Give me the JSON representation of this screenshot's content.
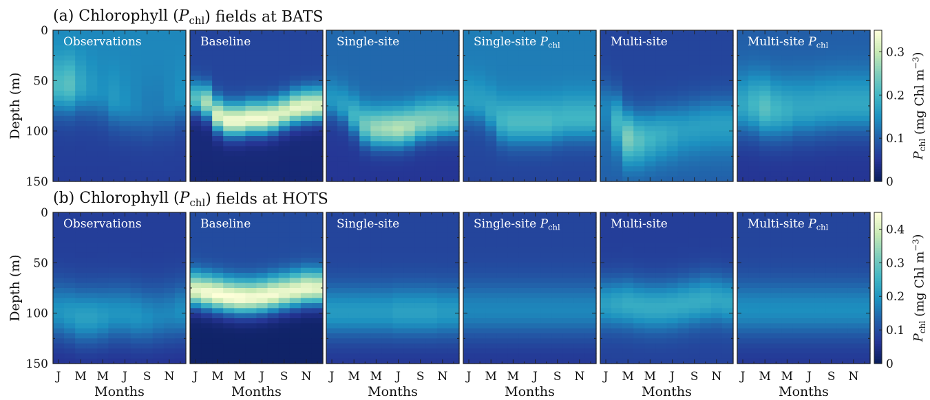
{
  "figure": {
    "rows": [
      {
        "label": "(a) Chlorophyll (",
        "sym": "P",
        "sub": "chl",
        "suffix": ") fields at BATS"
      },
      {
        "label": "(b) Chlorophyll (",
        "sym": "P",
        "sub": "chl",
        "suffix": ") fields at HOTS"
      }
    ],
    "panel_titles": [
      {
        "text": "Observations",
        "sym": "",
        "sub": ""
      },
      {
        "text": "Baseline",
        "sym": "",
        "sub": ""
      },
      {
        "text": "Single-site",
        "sym": "",
        "sub": ""
      },
      {
        "text": "Single-site ",
        "sym": "P",
        "sub": "chl"
      },
      {
        "text": "Multi-site",
        "sym": "",
        "sub": ""
      },
      {
        "text": "Multi-site ",
        "sym": "P",
        "sub": "chl"
      }
    ],
    "y_label": "Depth (m)",
    "x_label": "Months",
    "colorbar_label": {
      "sym": "P",
      "sub": "chl",
      "text": " (mg Chl m",
      "sup": "−3",
      "end": ")"
    },
    "colormap": [
      "#081d58",
      "#253494",
      "#225ea8",
      "#1d91c0",
      "#41b6c4",
      "#7fcdbb",
      "#c7e9b4",
      "#ffffd9"
    ]
  },
  "chart_data": [
    {
      "type": "heatmap",
      "site": "BATS",
      "x_ticks": [
        "J",
        "M",
        "M",
        "J",
        "S",
        "N"
      ],
      "y_ticks": [
        0,
        50,
        100,
        150
      ],
      "ylim": [
        150,
        0
      ],
      "colorbar": {
        "range": [
          0,
          0.35
        ],
        "ticks": [
          0,
          0.1,
          0.2,
          0.3
        ]
      },
      "fields": [
        {
          "name": "Observations",
          "surface": 0.14,
          "dcm_depth": [
            55,
            55,
            55,
            58,
            62,
            68,
            72,
            75,
            78,
            75,
            72,
            65
          ],
          "dcm_value": [
            0.21,
            0.22,
            0.18,
            0.16,
            0.15,
            0.16,
            0.15,
            0.14,
            0.13,
            0.13,
            0.14,
            0.15
          ],
          "dcm_width": 30,
          "deep": 0.07
        },
        {
          "name": "Baseline",
          "surface": 0.07,
          "dcm_depth": [
            68,
            72,
            85,
            90,
            90,
            88,
            88,
            86,
            82,
            78,
            76,
            75
          ],
          "dcm_value": [
            0.22,
            0.28,
            0.32,
            0.34,
            0.34,
            0.34,
            0.34,
            0.33,
            0.32,
            0.33,
            0.33,
            0.32
          ],
          "dcm_width": 17,
          "deep": 0.03
        },
        {
          "name": "Single-site",
          "surface": 0.11,
          "dcm_depth": [
            70,
            75,
            85,
            95,
            98,
            98,
            98,
            96,
            92,
            90,
            88,
            88
          ],
          "dcm_value": [
            0.16,
            0.17,
            0.2,
            0.24,
            0.27,
            0.28,
            0.29,
            0.28,
            0.26,
            0.25,
            0.24,
            0.23
          ],
          "dcm_width": 20,
          "deep": 0.06
        },
        {
          "name": "Single-site P_chl",
          "surface": 0.13,
          "dcm_depth": [
            70,
            72,
            80,
            90,
            92,
            92,
            92,
            92,
            90,
            88,
            88,
            88
          ],
          "dcm_value": [
            0.17,
            0.17,
            0.18,
            0.2,
            0.21,
            0.21,
            0.21,
            0.21,
            0.2,
            0.2,
            0.2,
            0.2
          ],
          "dcm_width": 24,
          "deep": 0.08
        },
        {
          "name": "Multi-site",
          "surface": 0.07,
          "dcm_depth": [
            80,
            92,
            108,
            110,
            108,
            105,
            103,
            100,
            98,
            96,
            95,
            95
          ],
          "dcm_value": [
            0.14,
            0.2,
            0.25,
            0.22,
            0.2,
            0.19,
            0.18,
            0.17,
            0.17,
            0.17,
            0.17,
            0.17
          ],
          "dcm_width": 28,
          "deep": 0.12
        },
        {
          "name": "Multi-site P_chl",
          "surface": 0.1,
          "dcm_depth": [
            75,
            75,
            78,
            80,
            80,
            78,
            78,
            76,
            75,
            74,
            74,
            74
          ],
          "dcm_value": [
            0.18,
            0.2,
            0.22,
            0.2,
            0.19,
            0.18,
            0.18,
            0.18,
            0.18,
            0.18,
            0.18,
            0.18
          ],
          "dcm_width": 32,
          "deep": 0.06
        }
      ]
    },
    {
      "type": "heatmap",
      "site": "HOTS",
      "x_ticks": [
        "J",
        "M",
        "M",
        "J",
        "S",
        "N"
      ],
      "y_ticks": [
        0,
        50,
        100,
        150
      ],
      "ylim": [
        150,
        0
      ],
      "colorbar": {
        "range": [
          0,
          0.45
        ],
        "ticks": [
          0,
          0.1,
          0.2,
          0.3,
          0.4
        ]
      },
      "fields": [
        {
          "name": "Observations",
          "surface": 0.08,
          "dcm_depth": [
            100,
            102,
            105,
            105,
            104,
            102,
            102,
            104,
            105,
            104,
            102,
            100
          ],
          "dcm_value": [
            0.2,
            0.21,
            0.22,
            0.22,
            0.21,
            0.2,
            0.2,
            0.2,
            0.19,
            0.18,
            0.18,
            0.19
          ],
          "dcm_width": 30,
          "deep": 0.07
        },
        {
          "name": "Baseline",
          "surface": 0.1,
          "dcm_depth": [
            78,
            80,
            82,
            84,
            85,
            85,
            84,
            82,
            80,
            78,
            76,
            76
          ],
          "dcm_value": [
            0.42,
            0.44,
            0.45,
            0.45,
            0.45,
            0.44,
            0.44,
            0.44,
            0.43,
            0.43,
            0.43,
            0.42
          ],
          "dcm_width": 18,
          "deep": 0.02
        },
        {
          "name": "Single-site",
          "surface": 0.09,
          "dcm_depth": [
            100,
            100,
            100,
            100,
            100,
            100,
            100,
            100,
            100,
            100,
            100,
            100
          ],
          "dcm_value": [
            0.21,
            0.21,
            0.21,
            0.21,
            0.21,
            0.21,
            0.22,
            0.22,
            0.22,
            0.22,
            0.21,
            0.21
          ],
          "dcm_width": 28,
          "deep": 0.08
        },
        {
          "name": "Single-site P_chl",
          "surface": 0.09,
          "dcm_depth": [
            98,
            98,
            98,
            98,
            98,
            98,
            98,
            98,
            98,
            98,
            98,
            98
          ],
          "dcm_value": [
            0.18,
            0.18,
            0.18,
            0.18,
            0.18,
            0.18,
            0.18,
            0.18,
            0.18,
            0.18,
            0.18,
            0.18
          ],
          "dcm_width": 30,
          "deep": 0.08
        },
        {
          "name": "Multi-site",
          "surface": 0.08,
          "dcm_depth": [
            92,
            92,
            92,
            94,
            95,
            95,
            94,
            92,
            90,
            88,
            88,
            90
          ],
          "dcm_value": [
            0.22,
            0.23,
            0.24,
            0.24,
            0.24,
            0.24,
            0.24,
            0.24,
            0.24,
            0.24,
            0.23,
            0.23
          ],
          "dcm_width": 26,
          "deep": 0.1
        },
        {
          "name": "Multi-site P_chl",
          "surface": 0.09,
          "dcm_depth": [
            98,
            98,
            98,
            98,
            98,
            98,
            98,
            98,
            98,
            98,
            98,
            98
          ],
          "dcm_value": [
            0.19,
            0.19,
            0.19,
            0.19,
            0.19,
            0.19,
            0.19,
            0.19,
            0.19,
            0.19,
            0.19,
            0.19
          ],
          "dcm_width": 30,
          "deep": 0.08
        }
      ]
    }
  ]
}
